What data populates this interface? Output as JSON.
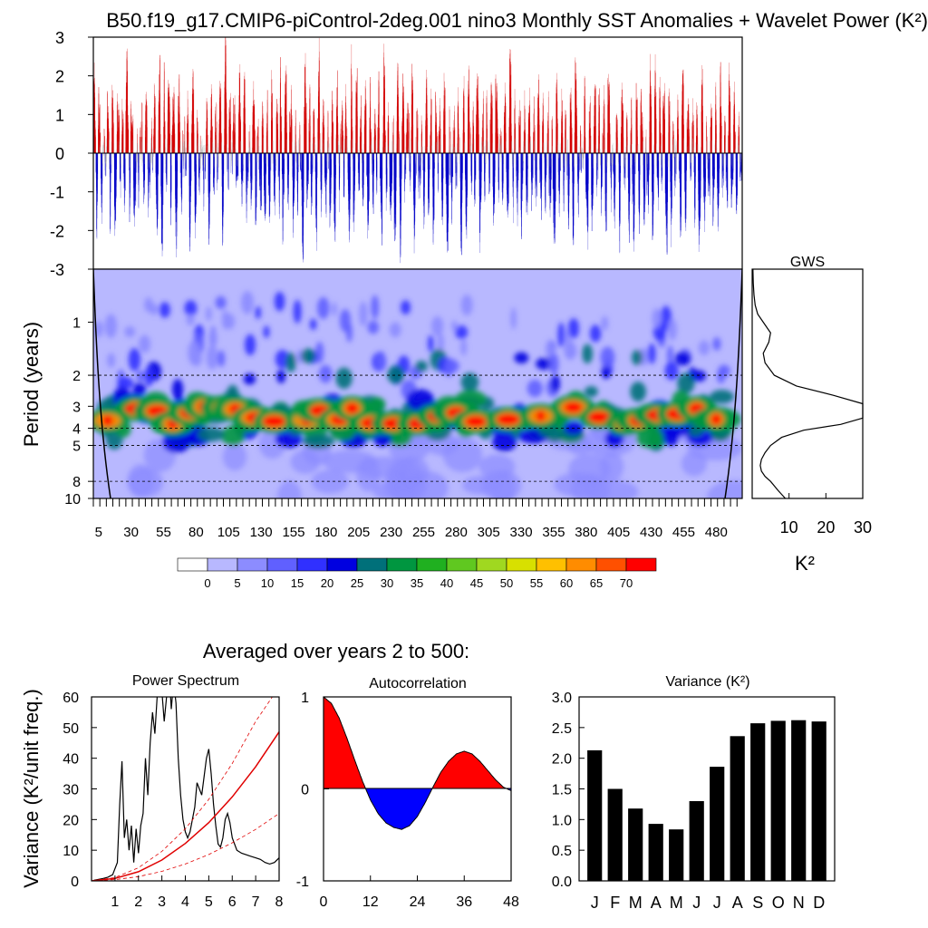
{
  "figure": {
    "title": "B50.f19_g17.CMIP6-piControl-2deg.001 nino3 Monthly SST Anomalies + Wavelet Power (K²)",
    "averaged_label": "Averaged over years 2 to 500:"
  },
  "colors": {
    "positive": "#d40000",
    "negative": "#0000c8",
    "wavelet_levels": [
      "#ffffff",
      "#b8b8ff",
      "#8c8cff",
      "#6060ff",
      "#3030ff",
      "#0000e0",
      "#00707a",
      "#009640",
      "#20b020",
      "#60c820",
      "#a0d820",
      "#d8e000",
      "#ffc000",
      "#ff8c00",
      "#ff5000",
      "#ff0000"
    ],
    "autocorr_positive": "#ff0000",
    "autocorr_negative": "#0000ff"
  },
  "chart_data": [
    {
      "id": "timeseries",
      "type": "bar",
      "title": "",
      "xlabel": "",
      "ylabel": "",
      "ylim": [
        -3,
        3
      ],
      "y_ticks": [
        "3",
        "2",
        "1",
        "0",
        "-1",
        "-2",
        "-3"
      ],
      "x_range_years": [
        1,
        500
      ],
      "samples": 6000,
      "value_range": [
        -3.0,
        3.0
      ]
    },
    {
      "id": "wavelet",
      "type": "heatmap",
      "ylabel": "Period (years)",
      "y_scale": "log",
      "ylim": [
        0.5,
        10
      ],
      "y_ticks": [
        "1",
        "2",
        "3",
        "4",
        "5",
        "8",
        "10"
      ],
      "y_tick_values": [
        1,
        2,
        3,
        4,
        5,
        8,
        10
      ],
      "dashed_periods": [
        2,
        4,
        5,
        8
      ],
      "x_ticks": [
        "5",
        "30",
        "55",
        "80",
        "105",
        "130",
        "155",
        "180",
        "205",
        "230",
        "255",
        "280",
        "305",
        "330",
        "355",
        "380",
        "405",
        "430",
        "455",
        "480"
      ],
      "x_tick_values": [
        5,
        30,
        55,
        80,
        105,
        130,
        155,
        180,
        205,
        230,
        255,
        280,
        305,
        330,
        355,
        380,
        405,
        430,
        455,
        480
      ],
      "xlim": [
        1,
        500
      ],
      "colorbar_labels": [
        "0",
        "5",
        "10",
        "15",
        "20",
        "25",
        "30",
        "35",
        "40",
        "45",
        "50",
        "55",
        "60",
        "65",
        "70"
      ],
      "high_power_years": [
        12,
        33,
        50,
        62,
        75,
        85,
        100,
        110,
        125,
        140,
        165,
        175,
        190,
        200,
        215,
        232,
        250,
        265,
        280,
        295,
        320,
        345,
        370,
        390,
        410,
        420,
        435,
        450,
        465,
        480
      ]
    },
    {
      "id": "gws",
      "type": "line",
      "title": "GWS",
      "xlabel": "K²",
      "xlim": [
        0,
        30
      ],
      "x_ticks": [
        "10",
        "20",
        "30"
      ],
      "x_tick_values": [
        10,
        20,
        30
      ],
      "x": [
        0.2,
        0.3,
        0.5,
        0.8,
        1.5,
        3.0,
        5.0,
        4.5,
        3.0,
        3.5,
        6.0,
        12.0,
        22.0,
        30.0,
        34.0,
        32.0,
        24.0,
        14.0,
        8.0,
        5.0,
        3.5,
        2.5,
        2.2,
        2.5,
        3.5,
        5.0,
        7.0,
        9.0
      ],
      "y": [
        0.5,
        0.6,
        0.7,
        0.8,
        0.9,
        1.0,
        1.15,
        1.3,
        1.5,
        1.7,
        2.0,
        2.3,
        2.6,
        2.9,
        3.2,
        3.5,
        3.8,
        4.1,
        4.5,
        5.0,
        5.5,
        6.0,
        6.5,
        7.0,
        7.5,
        8.0,
        9.0,
        10.0
      ]
    },
    {
      "id": "power_spectrum",
      "type": "line",
      "title": "Power Spectrum",
      "ylabel": "Variance (K²/unit freq.)",
      "xlim": [
        0,
        8
      ],
      "ylim": [
        0,
        60
      ],
      "x_ticks": [
        "1",
        "2",
        "3",
        "4",
        "5",
        "6",
        "7",
        "8"
      ],
      "y_ticks": [
        "60",
        "50",
        "40",
        "30",
        "20",
        "10",
        "0"
      ],
      "series": [
        {
          "kind": "spectrum",
          "x": [
            0.1,
            0.3,
            0.5,
            0.7,
            0.9,
            1.1,
            1.2,
            1.3,
            1.4,
            1.5,
            1.6,
            1.7,
            1.8,
            1.9,
            2.0,
            2.1,
            2.2,
            2.3,
            2.4,
            2.5,
            2.6,
            2.7,
            2.8,
            2.9,
            3.0,
            3.1,
            3.2,
            3.3,
            3.4,
            3.5,
            3.6,
            3.7,
            3.8,
            3.9,
            4.0,
            4.1,
            4.2,
            4.3,
            4.4,
            4.5,
            4.6,
            4.7,
            4.8,
            4.9,
            5.0,
            5.1,
            5.2,
            5.3,
            5.4,
            5.5,
            5.6,
            5.7,
            5.8,
            5.9,
            6.0,
            6.2,
            6.4,
            6.6,
            6.8,
            7.0,
            7.2,
            7.4,
            7.6,
            7.8,
            8.0
          ],
          "y": [
            0.2,
            0.5,
            0.8,
            1.2,
            2.0,
            6.0,
            25.0,
            39.0,
            14.0,
            20.0,
            10.0,
            18.0,
            6.0,
            17.0,
            9.0,
            18.0,
            22.0,
            40.0,
            28.0,
            45.0,
            55.0,
            48.0,
            60.0,
            65.0,
            62.0,
            52.0,
            60.0,
            70.0,
            56.0,
            65.0,
            58.0,
            40.0,
            28.0,
            20.0,
            16.0,
            14.0,
            16.0,
            20.0,
            24.0,
            32.0,
            30.0,
            28.0,
            34.0,
            40.0,
            43.0,
            35.0,
            25.0,
            18.0,
            12.0,
            11.0,
            14.0,
            20.0,
            22.0,
            19.0,
            14.0,
            10.0,
            9.0,
            8.5,
            8.0,
            7.5,
            7.0,
            6.0,
            5.5,
            6.0,
            7.5
          ]
        },
        {
          "kind": "red-noise",
          "x": [
            0,
            1,
            2,
            3,
            4,
            5,
            6,
            7,
            8
          ],
          "y": [
            0,
            0.8,
            3.0,
            6.8,
            12.2,
            19.0,
            27.4,
            37.2,
            48.6
          ]
        },
        {
          "kind": "upper",
          "x": [
            0,
            1,
            2,
            3,
            4,
            5,
            6,
            7,
            7.8
          ],
          "y": [
            0,
            1.1,
            4.3,
            9.6,
            17.0,
            26.6,
            38.3,
            52.0,
            61.0
          ]
        },
        {
          "kind": "lower",
          "x": [
            0,
            1,
            2,
            3,
            4,
            5,
            6,
            7,
            8
          ],
          "y": [
            0,
            0.4,
            1.4,
            3.1,
            5.5,
            8.6,
            12.4,
            16.8,
            22.0
          ]
        }
      ]
    },
    {
      "id": "autocorrelation",
      "type": "area",
      "title": "Autocorrelation",
      "xlim": [
        0,
        48
      ],
      "ylim": [
        -1,
        1
      ],
      "x_ticks": [
        "0",
        "12",
        "24",
        "36",
        "48"
      ],
      "x_tick_values": [
        0,
        12,
        24,
        36,
        48
      ],
      "y_ticks": [
        "1",
        "0",
        "-1"
      ],
      "x": [
        0,
        2,
        4,
        6,
        8,
        10,
        12,
        14,
        16,
        18,
        20,
        22,
        24,
        26,
        28,
        30,
        32,
        34,
        36,
        38,
        40,
        42,
        44,
        46,
        48
      ],
      "y": [
        1.0,
        0.93,
        0.77,
        0.55,
        0.31,
        0.08,
        -0.12,
        -0.27,
        -0.37,
        -0.42,
        -0.44,
        -0.4,
        -0.3,
        -0.15,
        0.02,
        0.18,
        0.3,
        0.38,
        0.41,
        0.38,
        0.3,
        0.2,
        0.1,
        0.02,
        -0.02
      ]
    },
    {
      "id": "variance",
      "type": "bar",
      "title": "Variance (K²)",
      "ylim": [
        0,
        3
      ],
      "y_ticks": [
        "3.0",
        "2.5",
        "2.0",
        "1.5",
        "1.0",
        "0.5",
        "0.0"
      ],
      "categories": [
        "J",
        "F",
        "M",
        "A",
        "M",
        "J",
        "J",
        "A",
        "S",
        "O",
        "N",
        "D"
      ],
      "values": [
        2.13,
        1.5,
        1.18,
        0.93,
        0.84,
        1.3,
        1.86,
        2.36,
        2.57,
        2.61,
        2.62,
        2.6
      ]
    }
  ]
}
